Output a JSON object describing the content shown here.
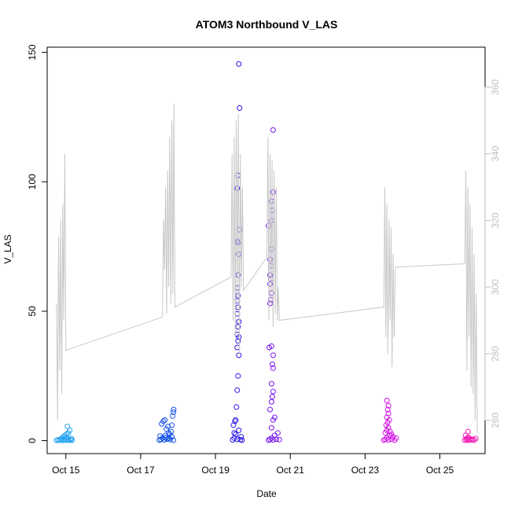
{
  "chart_data": {
    "type": "scatter",
    "title": "ATOM3 Northbound V_LAS",
    "xlabel": "Date",
    "ylabel": "V_LAS",
    "x_axis": {
      "type": "date",
      "range": [
        "2023-10-14T12:00",
        "2023-10-26T05:00"
      ],
      "ticks": [
        {
          "date": "2023-10-15",
          "label": "Oct 15"
        },
        {
          "date": "2023-10-17",
          "label": "Oct 17"
        },
        {
          "date": "2023-10-19",
          "label": "Oct 19"
        },
        {
          "date": "2023-10-21",
          "label": "Oct 21"
        },
        {
          "date": "2023-10-23",
          "label": "Oct 23"
        },
        {
          "date": "2023-10-25",
          "label": "Oct 25"
        }
      ]
    },
    "y_axis_left": {
      "range": [
        -5,
        152
      ],
      "ticks": [
        0,
        50,
        100,
        150
      ]
    },
    "y_axis_right": {
      "range": [
        250,
        372
      ],
      "ticks": [
        260,
        280,
        300,
        320,
        340,
        360
      ],
      "color": "#bfbfbf"
    },
    "grid": false,
    "legend": "none",
    "point_colors": {
      "Oct 14-15": "#1ea0f0",
      "Oct 17": "#1450e6",
      "Oct 19": "#2814e6",
      "Oct 20": "#7814ef",
      "Oct 23": "#d214e6",
      "Oct 25": "#f014b4"
    },
    "series": [
      {
        "kind": "points",
        "axis": "left",
        "color": "#1ea0f0",
        "points": [
          [
            "2023-10-14T18:00",
            0.1
          ],
          [
            "2023-10-14T19:00",
            0.3
          ],
          [
            "2023-10-14T20:00",
            0.2
          ],
          [
            "2023-10-14T21:00",
            0.5
          ],
          [
            "2023-10-14T22:00",
            0.1
          ],
          [
            "2023-10-14T23:00",
            0.4
          ],
          [
            "2023-10-15T00:00",
            0.2
          ],
          [
            "2023-10-15T01:00",
            0.6
          ],
          [
            "2023-10-15T02:00",
            0.1
          ],
          [
            "2023-10-15T03:00",
            0.3
          ],
          [
            "2023-10-15T04:00",
            0.2
          ],
          [
            "2023-10-14T21:30",
            1.0
          ],
          [
            "2023-10-14T22:30",
            1.5
          ],
          [
            "2023-10-14T23:30",
            2.0
          ],
          [
            "2023-10-15T00:30",
            2.5
          ],
          [
            "2023-10-15T01:30",
            3.0
          ],
          [
            "2023-10-15T02:30",
            4.0
          ],
          [
            "2023-10-15T01:00",
            5.5
          ],
          [
            "2023-10-15T00:15",
            1.2
          ],
          [
            "2023-10-15T03:30",
            0.8
          ]
        ]
      },
      {
        "kind": "points",
        "axis": "left",
        "color": "#1450e6",
        "points": [
          [
            "2023-10-17T12:00",
            0.2
          ],
          [
            "2023-10-17T13:00",
            0.5
          ],
          [
            "2023-10-17T14:00",
            1.0
          ],
          [
            "2023-10-17T15:00",
            0.3
          ],
          [
            "2023-10-17T16:00",
            2.0
          ],
          [
            "2023-10-17T17:00",
            0.6
          ],
          [
            "2023-10-17T18:00",
            3.0
          ],
          [
            "2023-10-17T19:00",
            0.4
          ],
          [
            "2023-10-17T20:00",
            1.5
          ],
          [
            "2023-10-17T21:00",
            0.2
          ],
          [
            "2023-10-17T13:30",
            6.5
          ],
          [
            "2023-10-17T14:30",
            7.5
          ],
          [
            "2023-10-17T15:30",
            8.0
          ],
          [
            "2023-10-17T16:30",
            4.5
          ],
          [
            "2023-10-17T17:30",
            5.5
          ],
          [
            "2023-10-17T18:30",
            2.5
          ],
          [
            "2023-10-17T19:30",
            3.5
          ],
          [
            "2023-10-17T20:30",
            9.5
          ],
          [
            "2023-10-17T21:00",
            11.0
          ],
          [
            "2023-10-17T21:10",
            12.0
          ],
          [
            "2023-10-17T20:00",
            6.0
          ],
          [
            "2023-10-17T16:00",
            1.2
          ],
          [
            "2023-10-17T18:00",
            0.9
          ],
          [
            "2023-10-17T12:30",
            1.8
          ]
        ]
      },
      {
        "kind": "points",
        "axis": "left",
        "color": "#2814e6",
        "points": [
          [
            "2023-10-19T11:00",
            0.3
          ],
          [
            "2023-10-19T12:00",
            1.0
          ],
          [
            "2023-10-19T13:00",
            2.5
          ],
          [
            "2023-10-19T14:00",
            0.5
          ],
          [
            "2023-10-19T15:00",
            4.0
          ],
          [
            "2023-10-19T11:30",
            6.0
          ],
          [
            "2023-10-19T12:30",
            7.5
          ],
          [
            "2023-10-19T13:00",
            8.0
          ],
          [
            "2023-10-19T13:30",
            13.0
          ],
          [
            "2023-10-19T14:00",
            19.5
          ],
          [
            "2023-10-19T14:30",
            25.0
          ],
          [
            "2023-10-19T15:00",
            33.0
          ],
          [
            "2023-10-19T14:00",
            36.0
          ],
          [
            "2023-10-19T14:30",
            38.5
          ],
          [
            "2023-10-19T15:00",
            40.0
          ],
          [
            "2023-10-19T14:00",
            41.0
          ],
          [
            "2023-10-19T14:30",
            44.0
          ],
          [
            "2023-10-19T15:00",
            46.0
          ],
          [
            "2023-10-19T14:00",
            49.0
          ],
          [
            "2023-10-19T14:30",
            51.5
          ],
          [
            "2023-10-19T14:00",
            54.0
          ],
          [
            "2023-10-19T14:30",
            56.0
          ],
          [
            "2023-10-19T14:00",
            59.0
          ],
          [
            "2023-10-19T14:30",
            64.0
          ],
          [
            "2023-10-19T15:00",
            72.0
          ],
          [
            "2023-10-19T14:30",
            76.5
          ],
          [
            "2023-10-19T14:00",
            77.0
          ],
          [
            "2023-10-19T15:30",
            81.5
          ],
          [
            "2023-10-19T14:00",
            97.5
          ],
          [
            "2023-10-19T14:30",
            102.5
          ],
          [
            "2023-10-19T15:30",
            128.5
          ],
          [
            "2023-10-19T15:00",
            145.5
          ],
          [
            "2023-10-19T16:00",
            0.4
          ],
          [
            "2023-10-19T17:00",
            0.2
          ],
          [
            "2023-10-19T12:00",
            3.0
          ],
          [
            "2023-10-19T16:30",
            1.5
          ]
        ]
      },
      {
        "kind": "points",
        "axis": "left",
        "color": "#7814ef",
        "points": [
          [
            "2023-10-20T10:00",
            0.2
          ],
          [
            "2023-10-20T11:00",
            0.5
          ],
          [
            "2023-10-20T12:00",
            1.0
          ],
          [
            "2023-10-20T13:00",
            0.3
          ],
          [
            "2023-10-20T14:00",
            2.0
          ],
          [
            "2023-10-20T15:00",
            0.6
          ],
          [
            "2023-10-20T16:00",
            3.0
          ],
          [
            "2023-10-20T17:00",
            0.4
          ],
          [
            "2023-10-20T12:00",
            5.0
          ],
          [
            "2023-10-20T13:00",
            8.0
          ],
          [
            "2023-10-20T14:00",
            9.0
          ],
          [
            "2023-10-20T11:00",
            12.0
          ],
          [
            "2023-10-20T12:00",
            15.0
          ],
          [
            "2023-10-20T12:30",
            17.0
          ],
          [
            "2023-10-20T13:00",
            19.0
          ],
          [
            "2023-10-20T12:00",
            22.0
          ],
          [
            "2023-10-20T13:00",
            28.0
          ],
          [
            "2023-10-20T12:30",
            29.5
          ],
          [
            "2023-10-20T13:00",
            33.0
          ],
          [
            "2023-10-20T10:30",
            36.0
          ],
          [
            "2023-10-20T12:00",
            36.5
          ],
          [
            "2023-10-20T11:00",
            53.0
          ],
          [
            "2023-10-20T11:30",
            54.5
          ],
          [
            "2023-10-20T12:00",
            57.0
          ],
          [
            "2023-10-20T11:00",
            60.5
          ],
          [
            "2023-10-20T11:30",
            62.5
          ],
          [
            "2023-10-20T11:00",
            64.0
          ],
          [
            "2023-10-20T11:30",
            67.5
          ],
          [
            "2023-10-20T11:00",
            70.0
          ],
          [
            "2023-10-20T12:00",
            74.0
          ],
          [
            "2023-10-20T10:00",
            83.0
          ],
          [
            "2023-10-20T12:00",
            85.0
          ],
          [
            "2023-10-20T12:30",
            89.0
          ],
          [
            "2023-10-20T12:00",
            92.5
          ],
          [
            "2023-10-20T13:00",
            96.0
          ],
          [
            "2023-10-20T13:00",
            120.0
          ]
        ]
      },
      {
        "kind": "points",
        "axis": "left",
        "color": "#d214e6",
        "points": [
          [
            "2023-10-23T12:00",
            0.2
          ],
          [
            "2023-10-23T13:00",
            0.5
          ],
          [
            "2023-10-23T14:00",
            1.0
          ],
          [
            "2023-10-23T15:00",
            0.3
          ],
          [
            "2023-10-23T16:00",
            2.0
          ],
          [
            "2023-10-23T17:00",
            0.6
          ],
          [
            "2023-10-23T18:00",
            1.5
          ],
          [
            "2023-10-23T19:00",
            0.2
          ],
          [
            "2023-10-23T20:00",
            1.0
          ],
          [
            "2023-10-23T13:00",
            3.0
          ],
          [
            "2023-10-23T14:00",
            4.0
          ],
          [
            "2023-10-23T15:00",
            5.0
          ],
          [
            "2023-10-23T13:30",
            6.0
          ],
          [
            "2023-10-23T14:30",
            7.0
          ],
          [
            "2023-10-23T15:30",
            8.0
          ],
          [
            "2023-10-23T14:00",
            9.0
          ],
          [
            "2023-10-23T15:00",
            10.5
          ],
          [
            "2023-10-23T14:30",
            12.0
          ],
          [
            "2023-10-23T15:00",
            13.5
          ],
          [
            "2023-10-23T14:00",
            15.5
          ],
          [
            "2023-10-23T16:00",
            3.5
          ],
          [
            "2023-10-23T17:00",
            2.5
          ]
        ]
      },
      {
        "kind": "points",
        "axis": "left",
        "color": "#f014b4",
        "points": [
          [
            "2023-10-25T16:00",
            0.2
          ],
          [
            "2023-10-25T17:00",
            0.4
          ],
          [
            "2023-10-25T18:00",
            0.1
          ],
          [
            "2023-10-25T19:00",
            0.6
          ],
          [
            "2023-10-25T20:00",
            0.3
          ],
          [
            "2023-10-25T21:00",
            0.5
          ],
          [
            "2023-10-25T22:00",
            0.2
          ],
          [
            "2023-10-25T23:00",
            0.8
          ],
          [
            "2023-10-25T17:30",
            1.0
          ],
          [
            "2023-10-25T18:30",
            1.2
          ],
          [
            "2023-10-25T16:30",
            2.0
          ],
          [
            "2023-10-25T18:00",
            3.5
          ]
        ]
      },
      {
        "kind": "line",
        "axis": "right",
        "color": "#c8c8c8",
        "points": [
          [
            "2023-10-14T18:00",
            295.0
          ],
          [
            "2023-10-14T18:40",
            260.0
          ],
          [
            "2023-10-14T19:20",
            315.0
          ],
          [
            "2023-10-14T20:00",
            275.0
          ],
          [
            "2023-10-14T20:40",
            320.0
          ],
          [
            "2023-10-14T21:20",
            268.0
          ],
          [
            "2023-10-14T22:00",
            325.0
          ],
          [
            "2023-10-14T22:40",
            290.0
          ],
          [
            "2023-10-14T23:20",
            340.0
          ],
          [
            "2023-10-15T00:00",
            281.0
          ],
          [
            "2023-10-17T14:00",
            291.0
          ],
          [
            "2023-10-17T14:40",
            320.0
          ],
          [
            "2023-10-17T15:20",
            305.0
          ],
          [
            "2023-10-17T16:00",
            330.0
          ],
          [
            "2023-10-17T16:40",
            292.0
          ],
          [
            "2023-10-17T17:20",
            335.0
          ],
          [
            "2023-10-17T18:00",
            300.0
          ],
          [
            "2023-10-17T18:40",
            345.0
          ],
          [
            "2023-10-17T19:20",
            295.0
          ],
          [
            "2023-10-17T20:00",
            350.0
          ],
          [
            "2023-10-17T20:40",
            298.0
          ],
          [
            "2023-10-17T21:20",
            355.0
          ],
          [
            "2023-10-17T22:00",
            294.0
          ],
          [
            "2023-10-19T10:00",
            303.0
          ],
          [
            "2023-10-19T10:40",
            340.0
          ],
          [
            "2023-10-19T11:20",
            290.0
          ],
          [
            "2023-10-19T12:00",
            345.0
          ],
          [
            "2023-10-19T12:40",
            285.0
          ],
          [
            "2023-10-19T13:20",
            350.0
          ],
          [
            "2023-10-19T14:00",
            295.0
          ],
          [
            "2023-10-19T14:40",
            352.0
          ],
          [
            "2023-10-19T15:20",
            280.0
          ],
          [
            "2023-10-19T16:00",
            340.0
          ],
          [
            "2023-10-19T16:40",
            300.0
          ],
          [
            "2023-10-19T17:20",
            330.0
          ],
          [
            "2023-10-19T18:00",
            299.0
          ],
          [
            "2023-10-20T09:00",
            309.0
          ],
          [
            "2023-10-20T09:40",
            345.0
          ],
          [
            "2023-10-20T10:20",
            290.0
          ],
          [
            "2023-10-20T11:00",
            340.0
          ],
          [
            "2023-10-20T11:40",
            295.0
          ],
          [
            "2023-10-20T12:20",
            338.0
          ],
          [
            "2023-10-20T13:00",
            288.0
          ],
          [
            "2023-10-20T13:40",
            335.0
          ],
          [
            "2023-10-20T14:20",
            292.0
          ],
          [
            "2023-10-20T15:00",
            330.0
          ],
          [
            "2023-10-20T15:40",
            290.0
          ],
          [
            "2023-10-20T16:20",
            300.0
          ],
          [
            "2023-10-20T17:00",
            290.0
          ],
          [
            "2023-10-23T12:00",
            294.0
          ],
          [
            "2023-10-23T12:40",
            330.0
          ],
          [
            "2023-10-23T13:20",
            285.0
          ],
          [
            "2023-10-23T14:00",
            325.0
          ],
          [
            "2023-10-23T14:40",
            280.0
          ],
          [
            "2023-10-23T15:20",
            320.0
          ],
          [
            "2023-10-23T16:00",
            290.0
          ],
          [
            "2023-10-23T16:40",
            318.0
          ],
          [
            "2023-10-23T17:20",
            276.0
          ],
          [
            "2023-10-23T18:00",
            310.0
          ],
          [
            "2023-10-23T18:40",
            285.0
          ],
          [
            "2023-10-23T19:20",
            305.0
          ],
          [
            "2023-10-23T20:00",
            306.0
          ],
          [
            "2023-10-25T16:00",
            307.0
          ],
          [
            "2023-10-25T16:40",
            335.0
          ],
          [
            "2023-10-25T17:20",
            275.0
          ],
          [
            "2023-10-25T18:00",
            330.0
          ],
          [
            "2023-10-25T18:40",
            285.0
          ],
          [
            "2023-10-25T19:20",
            325.0
          ],
          [
            "2023-10-25T20:00",
            270.0
          ],
          [
            "2023-10-25T20:40",
            318.0
          ],
          [
            "2023-10-25T21:20",
            268.0
          ],
          [
            "2023-10-25T22:00",
            310.0
          ],
          [
            "2023-10-25T22:40",
            260.0
          ],
          [
            "2023-10-25T23:20",
            298.0
          ],
          [
            "2023-10-26T00:00",
            256.0
          ]
        ]
      }
    ]
  }
}
